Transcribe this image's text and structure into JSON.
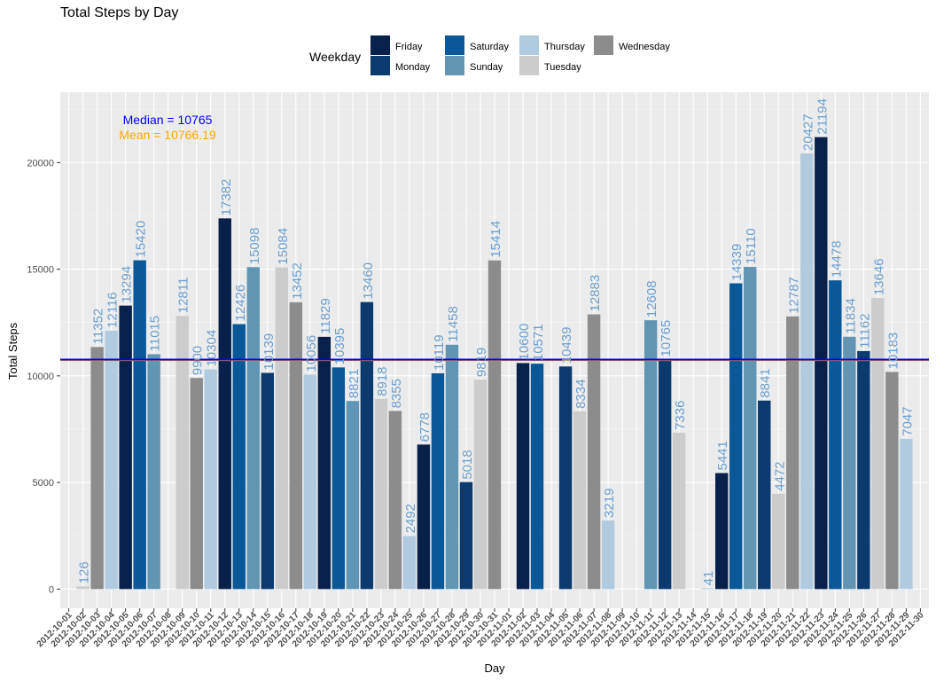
{
  "chart_data": {
    "type": "bar",
    "title": "Total Steps by Day",
    "xlabel": "Day",
    "ylabel": "Total Steps",
    "ylim": [
      -900,
      23300
    ],
    "yticks": [
      0,
      5000,
      10000,
      15000,
      20000
    ],
    "legend": {
      "title": "Weekday",
      "placement": "top",
      "entries": [
        {
          "name": "Friday",
          "color": "#08214a"
        },
        {
          "name": "Monday",
          "color": "#0b3a6e"
        },
        {
          "name": "Saturday",
          "color": "#0a5898"
        },
        {
          "name": "Sunday",
          "color": "#6096b4"
        },
        {
          "name": "Thursday",
          "color": "#b0cae0"
        },
        {
          "name": "Tuesday",
          "color": "#cccccc"
        },
        {
          "name": "Wednesday",
          "color": "#8c8c8c"
        }
      ]
    },
    "reference_lines": [
      {
        "label": "Median = 10765",
        "value": 10765,
        "color": "#0000ff"
      },
      {
        "label": "Mean = 10766.19",
        "value": 10766.19,
        "color": "#ffa500"
      }
    ],
    "label_color": "#6a9fd0",
    "categories": [
      "2012-10-01",
      "2012-10-02",
      "2012-10-03",
      "2012-10-04",
      "2012-10-05",
      "2012-10-06",
      "2012-10-07",
      "2012-10-08",
      "2012-10-09",
      "2012-10-10",
      "2012-10-11",
      "2012-10-12",
      "2012-10-13",
      "2012-10-14",
      "2012-10-15",
      "2012-10-16",
      "2012-10-17",
      "2012-10-18",
      "2012-10-19",
      "2012-10-20",
      "2012-10-21",
      "2012-10-22",
      "2012-10-23",
      "2012-10-24",
      "2012-10-25",
      "2012-10-26",
      "2012-10-27",
      "2012-10-28",
      "2012-10-29",
      "2012-10-30",
      "2012-10-31",
      "2012-11-01",
      "2012-11-02",
      "2012-11-03",
      "2012-11-04",
      "2012-11-05",
      "2012-11-06",
      "2012-11-07",
      "2012-11-08",
      "2012-11-09",
      "2012-11-10",
      "2012-11-11",
      "2012-11-12",
      "2012-11-13",
      "2012-11-14",
      "2012-11-15",
      "2012-11-16",
      "2012-11-17",
      "2012-11-18",
      "2012-11-19",
      "2012-11-20",
      "2012-11-21",
      "2012-11-22",
      "2012-11-23",
      "2012-11-24",
      "2012-11-25",
      "2012-11-26",
      "2012-11-27",
      "2012-11-28",
      "2012-11-29",
      "2012-11-30"
    ],
    "weekdays": [
      "Monday",
      "Tuesday",
      "Wednesday",
      "Thursday",
      "Friday",
      "Saturday",
      "Sunday",
      "Monday",
      "Tuesday",
      "Wednesday",
      "Thursday",
      "Friday",
      "Saturday",
      "Sunday",
      "Monday",
      "Tuesday",
      "Wednesday",
      "Thursday",
      "Friday",
      "Saturday",
      "Sunday",
      "Monday",
      "Tuesday",
      "Wednesday",
      "Thursday",
      "Friday",
      "Saturday",
      "Sunday",
      "Monday",
      "Tuesday",
      "Wednesday",
      "Thursday",
      "Friday",
      "Saturday",
      "Sunday",
      "Monday",
      "Tuesday",
      "Wednesday",
      "Thursday",
      "Friday",
      "Saturday",
      "Sunday",
      "Monday",
      "Tuesday",
      "Wednesday",
      "Thursday",
      "Friday",
      "Saturday",
      "Sunday",
      "Monday",
      "Tuesday",
      "Wednesday",
      "Thursday",
      "Friday",
      "Saturday",
      "Sunday",
      "Monday",
      "Tuesday",
      "Wednesday",
      "Thursday",
      "Friday"
    ],
    "values": [
      null,
      126,
      11352,
      12116,
      13294,
      15420,
      11015,
      null,
      12811,
      9900,
      10304,
      17382,
      12426,
      15098,
      10139,
      15084,
      13452,
      10056,
      11829,
      10395,
      8821,
      13460,
      8918,
      8355,
      2492,
      6778,
      10119,
      11458,
      5018,
      9819,
      15414,
      null,
      10600,
      10571,
      null,
      10439,
      8334,
      12883,
      3219,
      null,
      null,
      12608,
      10765,
      7336,
      null,
      41,
      5441,
      14339,
      15110,
      8841,
      4472,
      12787,
      20427,
      21194,
      14478,
      11834,
      11162,
      13646,
      10183,
      7047,
      null
    ]
  }
}
